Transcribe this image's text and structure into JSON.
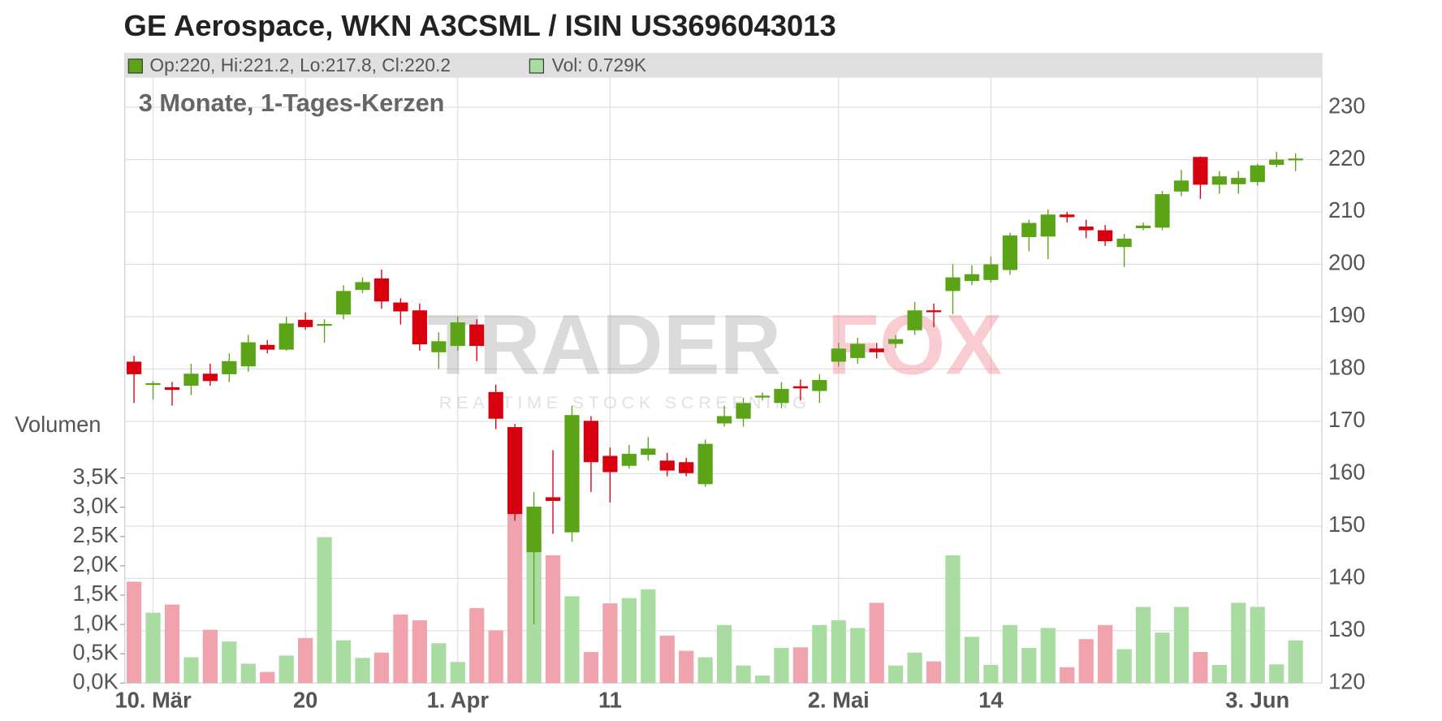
{
  "chart_data": {
    "type": "candlestick",
    "title": "GE Aerospace, WKN A3CSML / ISIN US3696043013",
    "subtitle": "3 Monate, 1-Tages-Kerzen",
    "legend": {
      "ohlc": "Op:220, Hi:221.2, Lo:217.8, Cl:220.2",
      "volume": "Vol: 0.729K"
    },
    "y2_label": "Volumen",
    "watermark": {
      "brand_left": "TRADER",
      "brand_right": "FOX",
      "tagline": "REALTIME STOCK SCREENING"
    },
    "categories": [
      null,
      "10. Mär",
      null,
      null,
      null,
      null,
      null,
      null,
      null,
      "20",
      null,
      null,
      null,
      null,
      null,
      null,
      null,
      "1. Apr",
      null,
      null,
      null,
      null,
      null,
      null,
      null,
      "11",
      null,
      null,
      null,
      null,
      null,
      null,
      null,
      null,
      null,
      null,
      null,
      "2. Mai",
      null,
      null,
      null,
      null,
      null,
      null,
      null,
      "14",
      null,
      null,
      null,
      null,
      null,
      null,
      null,
      null,
      null,
      null,
      null,
      null,
      null,
      "3. Jun",
      null,
      null
    ],
    "open": [
      181.4,
      177.2,
      176.5,
      176.8,
      179.1,
      179,
      180.5,
      184.6,
      183.7,
      189.4,
      188.3,
      190.4,
      195.1,
      197.3,
      192.7,
      191.2,
      183.2,
      184.4,
      188.5,
      175.6,
      168.9,
      145,
      155.5,
      148.8,
      170.1,
      163.4,
      161.5,
      163.6,
      162.5,
      162.2,
      158,
      169.6,
      170.5,
      174.8,
      173.5,
      176.7,
      175.8,
      181.4,
      182.1,
      183.9,
      184.8,
      187.4,
      191.2,
      194.9,
      196.8,
      197,
      198.9,
      205.2,
      205.3,
      209.5,
      207.2,
      206.5,
      203.3,
      206.9,
      207,
      213.9,
      220.5,
      215.2,
      215.3,
      215.7,
      219,
      220
    ],
    "high": [
      182.5,
      177.7,
      177.5,
      181,
      181,
      183,
      186.5,
      185.5,
      190,
      190.8,
      189.5,
      196,
      197.5,
      199,
      193.5,
      192.5,
      187,
      190,
      189.5,
      177,
      169.5,
      156.5,
      164.5,
      173,
      171,
      165,
      165.5,
      167,
      164,
      163,
      166.5,
      173,
      174.5,
      175.5,
      177.5,
      178,
      179,
      185,
      186,
      185,
      186.5,
      192.8,
      192.5,
      200,
      199.8,
      201.5,
      206,
      208.5,
      210.5,
      210,
      208.5,
      207.5,
      205.8,
      208,
      214,
      218,
      220.6,
      217.8,
      217.8,
      219.2,
      221.5,
      221.2
    ],
    "low": [
      173.5,
      174.2,
      173,
      175,
      176.8,
      177.5,
      179.5,
      183,
      183.5,
      187.5,
      185,
      189.5,
      194.5,
      191.5,
      188.5,
      183.5,
      180,
      183.5,
      181.5,
      168.5,
      151,
      131.3,
      148.5,
      147,
      156.5,
      154.5,
      161,
      162.5,
      159.5,
      159.5,
      157.5,
      169,
      169,
      174,
      172.5,
      174,
      173.5,
      180.5,
      181,
      182,
      184,
      186.5,
      188,
      190.5,
      196,
      196.5,
      198,
      202.5,
      201,
      208,
      205,
      203.5,
      199.5,
      206.5,
      206.5,
      213,
      212.5,
      213.5,
      213.5,
      215,
      218.5,
      217.8
    ],
    "close": [
      179,
      177.3,
      176,
      179.1,
      177.7,
      181.5,
      185.1,
      183.7,
      188.7,
      188,
      188.6,
      194.9,
      196.6,
      192.9,
      191,
      184.7,
      185.3,
      188.9,
      184.4,
      170.5,
      152.3,
      153.7,
      154.8,
      171.2,
      162.2,
      160.3,
      163.8,
      164.8,
      160.6,
      160.1,
      165.7,
      171,
      173.5,
      174.9,
      176.2,
      176.3,
      177.9,
      183.9,
      184.8,
      183.2,
      185.7,
      191.2,
      191,
      197.5,
      198.1,
      200,
      205.5,
      207.9,
      209.5,
      209,
      206.5,
      204.4,
      204.9,
      207.4,
      213.4,
      216,
      215.2,
      216.8,
      216.5,
      218.9,
      220,
      220.2
    ],
    "volume": [
      1.73,
      1.2,
      1.34,
      0.44,
      0.91,
      0.71,
      0.33,
      0.19,
      0.47,
      0.77,
      2.49,
      0.73,
      0.43,
      0.52,
      1.17,
      1.07,
      0.68,
      0.36,
      1.28,
      0.9,
      2.9,
      2.5,
      2.18,
      1.48,
      0.53,
      1.36,
      1.45,
      1.6,
      0.81,
      0.55,
      0.44,
      0.99,
      0.3,
      0.13,
      0.6,
      0.61,
      0.99,
      1.07,
      0.94,
      1.37,
      0.3,
      0.52,
      0.37,
      2.18,
      0.79,
      0.31,
      0.99,
      0.6,
      0.94,
      0.27,
      0.75,
      0.99,
      0.58,
      1.3,
      0.86,
      1.3,
      0.53,
      0.31,
      1.37,
      1.3,
      0.32,
      0.729
    ],
    "up_color": "#5ba317",
    "down_color": "#d8000e",
    "volume_up_color": "#a8dca0",
    "volume_down_color": "#f0a3ad",
    "ylim": [
      120,
      230
    ],
    "yticks": [
      120,
      130,
      140,
      150,
      160,
      170,
      180,
      190,
      200,
      210,
      220,
      230
    ],
    "y2lim": [
      0,
      3.5
    ],
    "y2ticks": [
      {
        "value": 0,
        "label": "0,0K"
      },
      {
        "value": 0.5,
        "label": "0,5K"
      },
      {
        "value": 1,
        "label": "1,0K"
      },
      {
        "value": 1.5,
        "label": "1,5K"
      },
      {
        "value": 2,
        "label": "2,0K"
      },
      {
        "value": 2.5,
        "label": "2,5K"
      },
      {
        "value": 3,
        "label": "3,0K"
      },
      {
        "value": 3.5,
        "label": "3,5K"
      }
    ],
    "grid": true
  }
}
